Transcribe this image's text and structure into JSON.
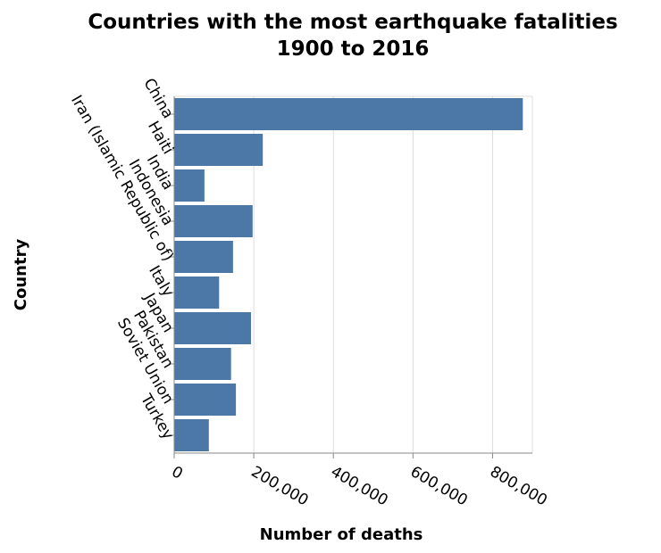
{
  "chart_data": {
    "type": "bar",
    "orientation": "horizontal",
    "title": "Countries with the most earthquake fatalities",
    "subtitle": "1900 to 2016",
    "xlabel": "Number of deaths",
    "ylabel": "Country",
    "categories": [
      "China",
      "Haiti",
      "India",
      "Indonesia",
      "Iran (Islamic Republic of)",
      "Italy",
      "Japan",
      "Pakistan",
      "Soviet Union",
      "Turkey"
    ],
    "values": [
      876000,
      222600,
      76000,
      197000,
      148000,
      113000,
      193000,
      143000,
      155000,
      87000
    ],
    "xlim": [
      0,
      900000
    ],
    "xticks": [
      0,
      200000,
      400000,
      600000,
      800000
    ],
    "xtick_labels": [
      "0",
      "200,000",
      "400,000",
      "600,000",
      "800,000"
    ],
    "grid": true,
    "bar_color": "#4c78a8"
  }
}
